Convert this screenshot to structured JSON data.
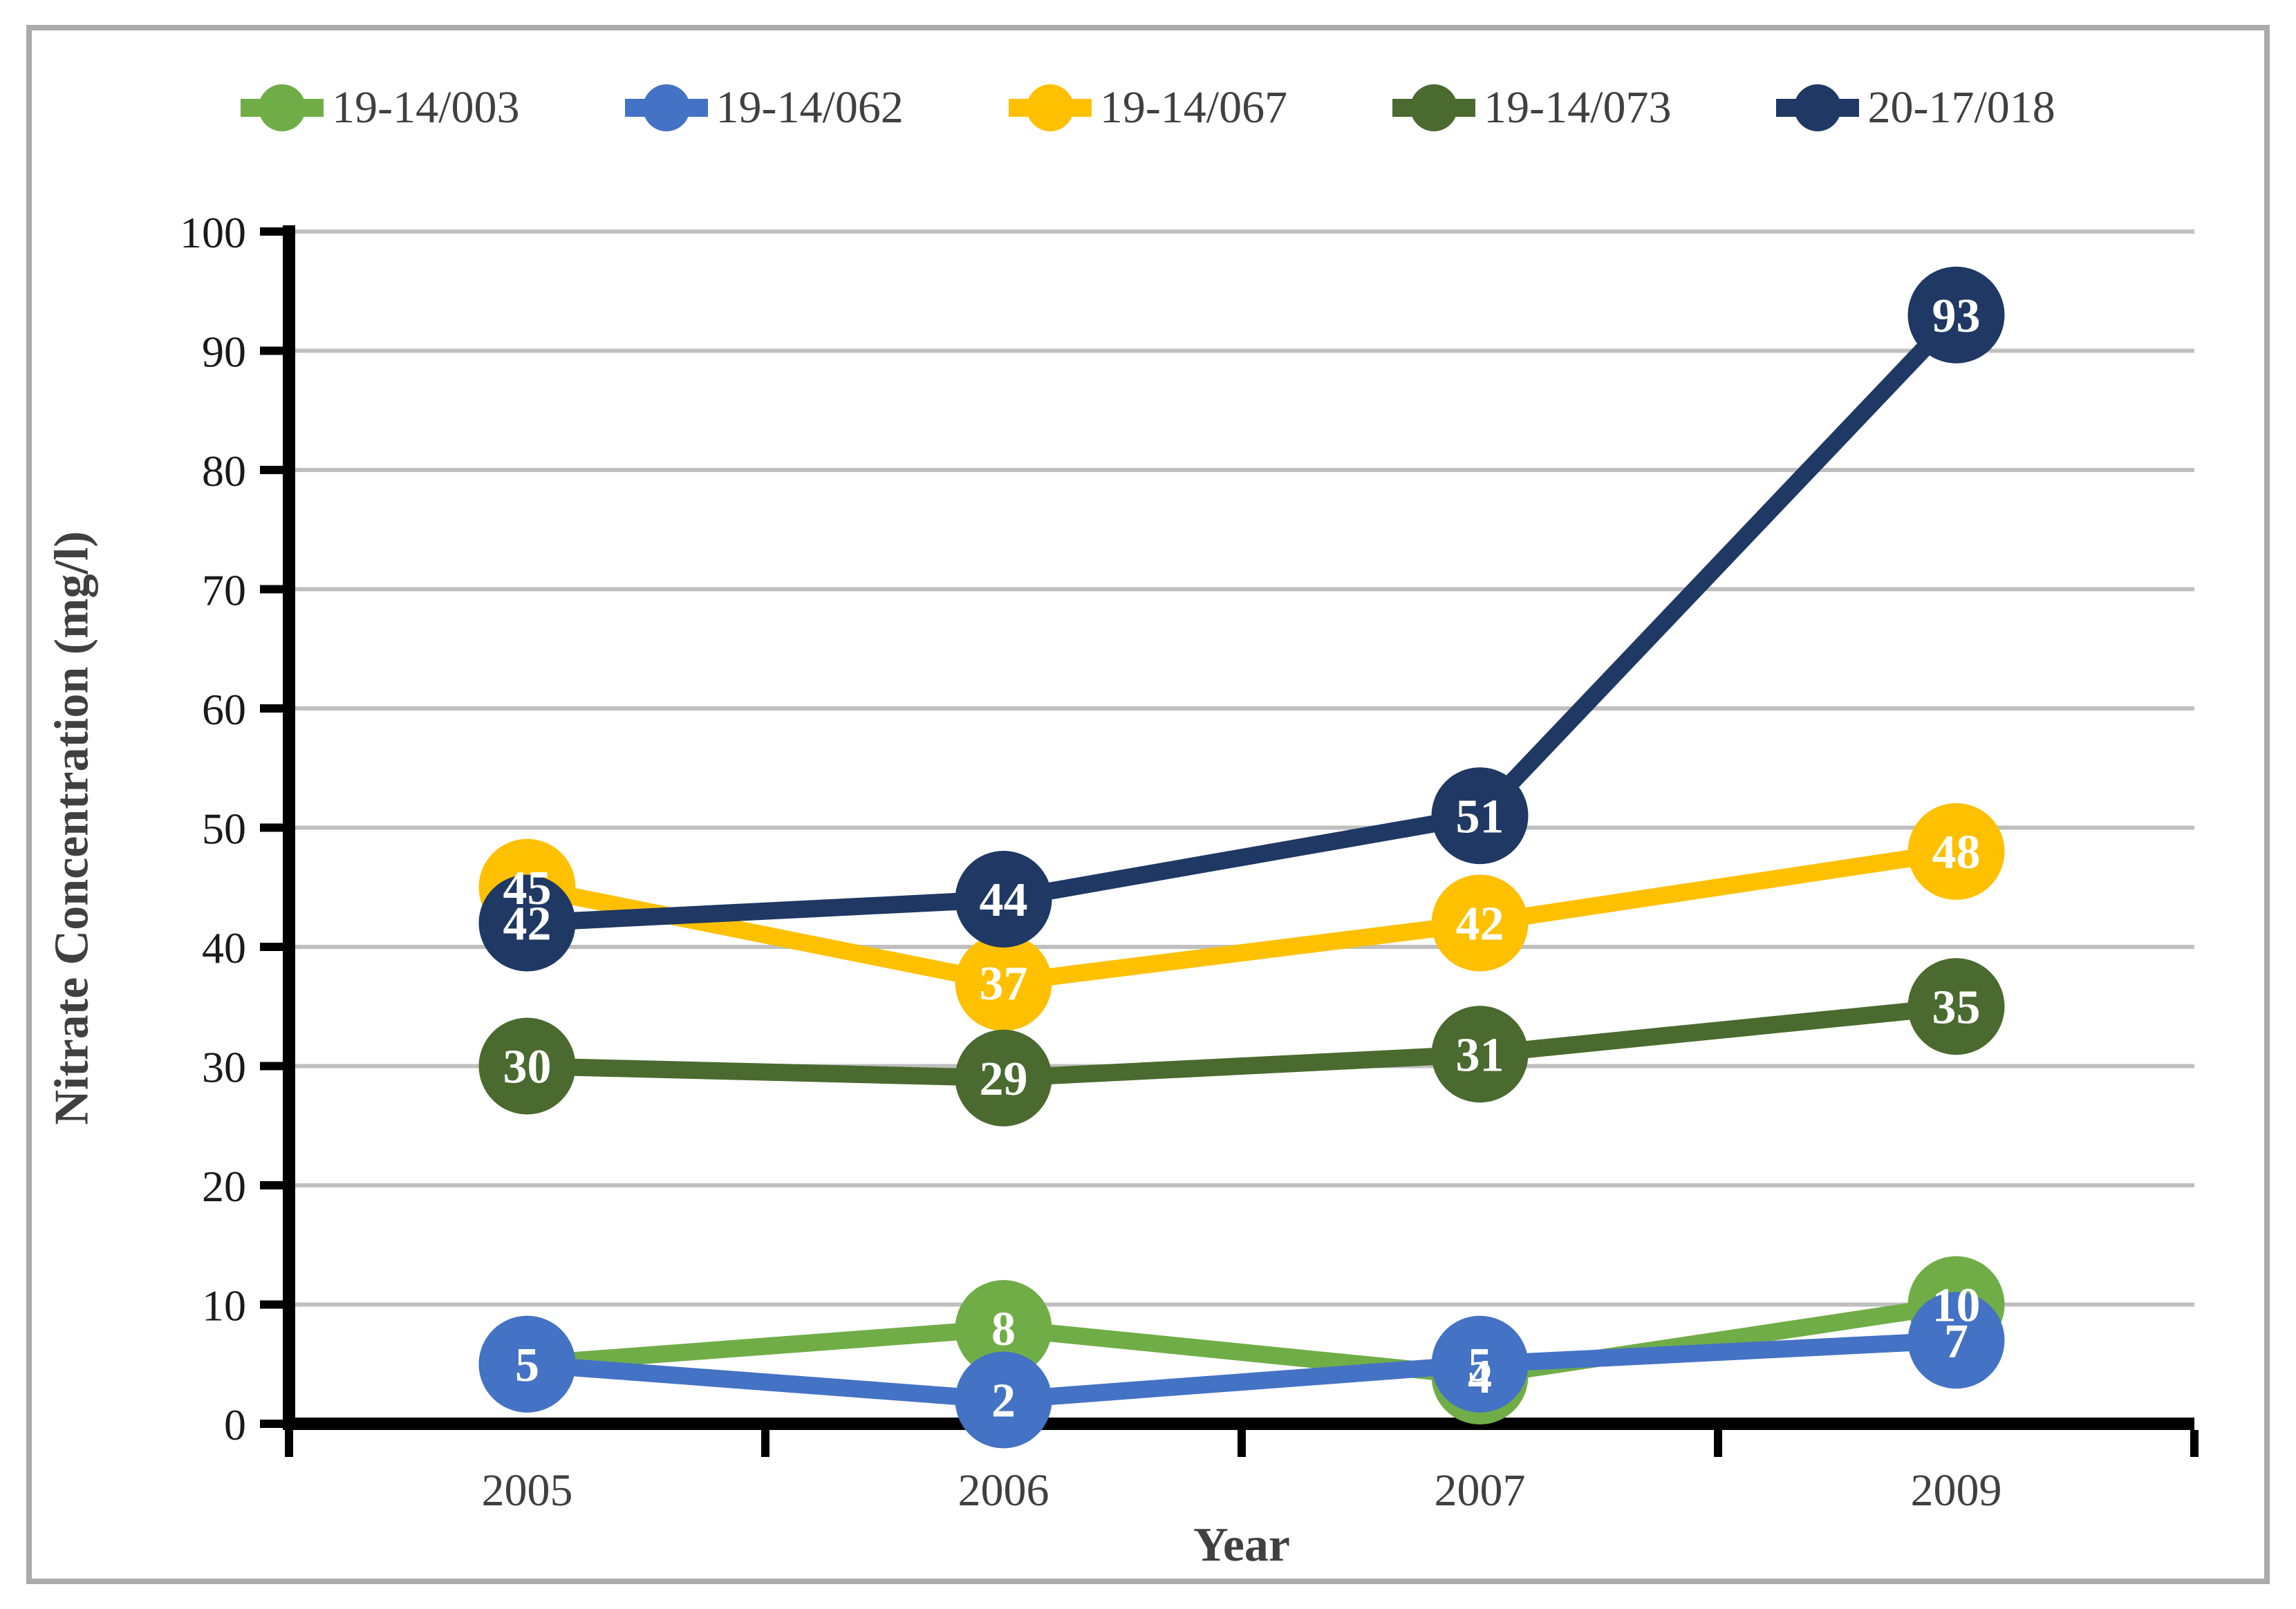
{
  "chart_data": {
    "type": "line",
    "title": "",
    "categories": [
      "2005",
      "2006",
      "2007",
      "2009"
    ],
    "series": [
      {
        "name": "19-14/003",
        "color": "#70AD47",
        "values": [
          5,
          8,
          4,
          10
        ]
      },
      {
        "name": "19-14/062",
        "color": "#4472C4",
        "values": [
          5,
          2,
          5,
          7
        ]
      },
      {
        "name": "19-14/067",
        "color": "#FFC000",
        "values": [
          45,
          37,
          42,
          48
        ]
      },
      {
        "name": "19-14/073",
        "color": "#4A6A2F",
        "values": [
          30,
          29,
          31,
          35
        ]
      },
      {
        "name": "20-17/018",
        "color": "#1F3864",
        "values": [
          42,
          44,
          51,
          93
        ]
      }
    ],
    "xlabel": "Year",
    "ylabel": "Nitrate Concentration (mg/l)",
    "ylim": [
      0,
      100
    ],
    "yticks": [
      0,
      10,
      20,
      30,
      40,
      50,
      60,
      70,
      80,
      90,
      100
    ],
    "grid": "horizontal",
    "legend_position": "top",
    "marker": "circle",
    "data_label_color": "#FFFFFF",
    "colors": {
      "gridline": "#BFBFBF",
      "axis": "#000000",
      "frame_border": "#ABABAB",
      "tick_label": "#404040",
      "legend_text": "#404040"
    }
  }
}
